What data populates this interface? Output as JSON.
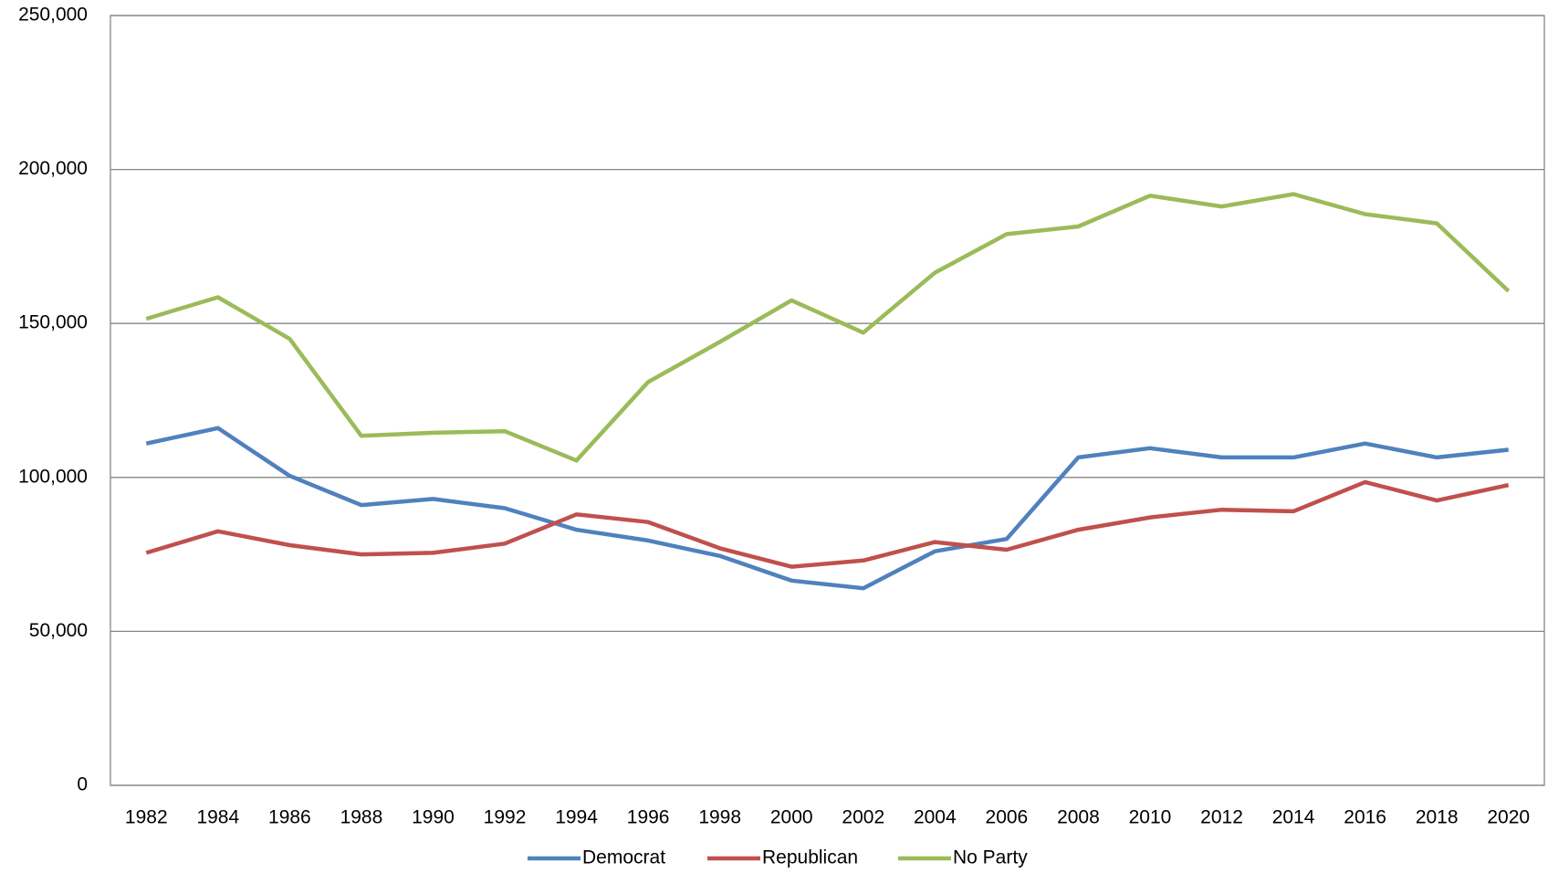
{
  "chart_data": {
    "type": "line",
    "categories": [
      "1982",
      "1984",
      "1986",
      "1988",
      "1990",
      "1992",
      "1994",
      "1996",
      "1998",
      "2000",
      "2002",
      "2004",
      "2006",
      "2008",
      "2010",
      "2012",
      "2014",
      "2016",
      "2018",
      "2020"
    ],
    "series": [
      {
        "name": "Democrat",
        "color": "#4f81bd",
        "values": [
          111000,
          116000,
          100500,
          91000,
          93000,
          90000,
          83000,
          79500,
          74500,
          66500,
          64000,
          76000,
          80000,
          106500,
          109500,
          106500,
          106500,
          111000,
          106500,
          109000
        ]
      },
      {
        "name": "Republican",
        "color": "#c0504d",
        "values": [
          75500,
          82500,
          78000,
          75000,
          75500,
          78500,
          88000,
          85500,
          77000,
          71000,
          73000,
          79000,
          76500,
          83000,
          87000,
          89500,
          89000,
          98500,
          92500,
          97500
        ]
      },
      {
        "name": "No Party",
        "color": "#9bbb59",
        "values": [
          151500,
          158500,
          145000,
          113500,
          114500,
          115000,
          105500,
          131000,
          144000,
          157500,
          147000,
          166500,
          179000,
          181500,
          191500,
          188000,
          192000,
          185500,
          182500,
          160500
        ]
      }
    ],
    "ylim": [
      0,
      250000
    ],
    "yticks": [
      0,
      {
        "value": 50000,
        "label": "50,000"
      },
      {
        "value": 100000,
        "label": "100,000"
      },
      {
        "value": 150000,
        "label": "150,000"
      },
      {
        "value": 200000,
        "label": "200,000"
      },
      {
        "value": 250000,
        "label": "250,000"
      }
    ],
    "grid": true,
    "legend": "bottom"
  }
}
